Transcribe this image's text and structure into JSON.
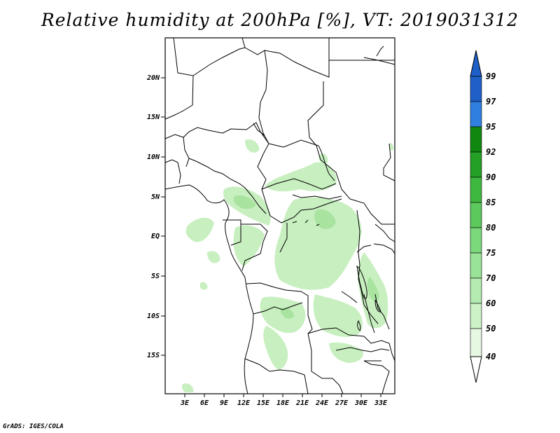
{
  "title": "Relative humidity at 200hPa [%], VT: 2019031312",
  "credit": "GrADS: IGES/COLA",
  "map": {
    "lon_range": [
      0,
      36
    ],
    "lat_range": [
      -20,
      25
    ],
    "lat_ticks": [
      "20N",
      "15N",
      "10N",
      "5N",
      "EQ",
      "5S",
      "10S",
      "15S"
    ],
    "lon_ticks": [
      "3E",
      "6E",
      "9E",
      "12E",
      "15E",
      "18E",
      "21E",
      "24E",
      "27E",
      "30E",
      "33E"
    ]
  },
  "colorbar": {
    "levels": [
      "40",
      "50",
      "60",
      "70",
      "75",
      "80",
      "85",
      "90",
      "92",
      "95",
      "97",
      "99"
    ],
    "colors": [
      "#e6f7e2",
      "#cdf2c8",
      "#b4ebb0",
      "#98e397",
      "#7bd87b",
      "#5cc95c",
      "#3fb83f",
      "#24a024",
      "#108810",
      "#4e9ded",
      "#2f7fe0",
      "#1e5fc8"
    ]
  },
  "humidity_shading_color": "#c6efbe"
}
